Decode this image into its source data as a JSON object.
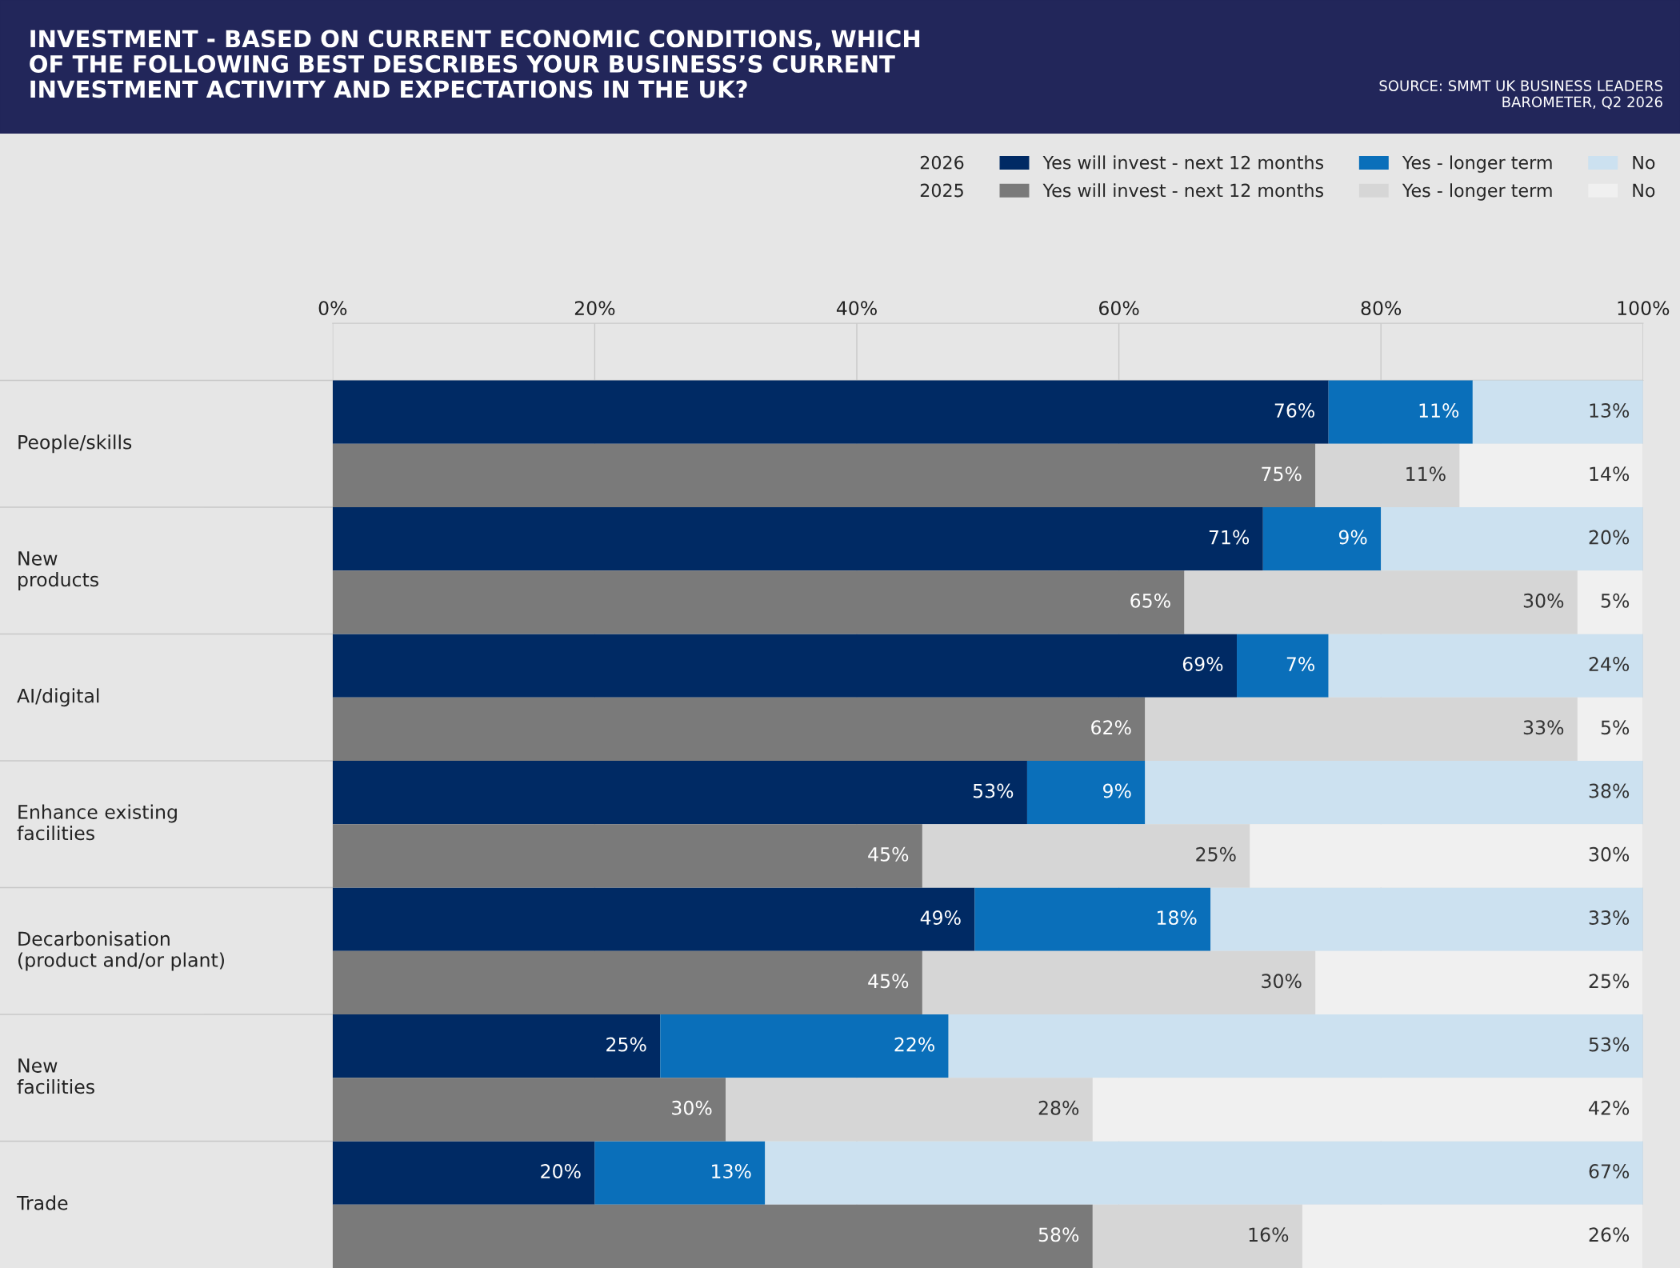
{
  "chart_data": {
    "type": "bar",
    "orientation": "horizontal",
    "stacked": true,
    "title": "INVESTMENT - BASED ON CURRENT ECONOMIC CONDITIONS, WHICH\nOF THE FOLLOWING BEST DESCRIBES YOUR BUSINESS’S CURRENT\nINVESTMENT ACTIVITY AND EXPECTATIONS IN THE UK?",
    "annotations": [
      "SOURCE: SMMT UK BUSINESS LEADERS\nBAROMETER, Q2 2026",
      "2026",
      "2025"
    ],
    "categories": [
      "People/skills",
      null,
      "New\nproducts",
      null,
      "AI/digital",
      null,
      "Enhance existing\nfacilities",
      null,
      "Decarbonisation\n(product and/or plant)",
      null,
      "New\nfacilities",
      null,
      "Trade",
      null
    ],
    "xlim": [
      0,
      100
    ],
    "xticks": [
      {
        "value": 0,
        "label": "0%"
      },
      {
        "value": 20,
        "label": "20%"
      },
      {
        "value": 40,
        "label": "40%"
      },
      {
        "value": 60,
        "label": "60%"
      },
      {
        "value": 80,
        "label": "80%"
      },
      {
        "value": 100,
        "label": "100%"
      }
    ],
    "grid": "x",
    "legend": "top right",
    "series": [
      {
        "name": "Yes will invest - next 12 months",
        "color": "#002a64",
        "values": [
          76,
          null,
          71,
          null,
          69,
          null,
          53,
          null,
          49,
          null,
          25,
          null,
          20,
          null
        ],
        "value_labels": [
          "76%",
          null,
          "71%",
          null,
          "69%",
          null,
          "53%",
          null,
          "49%",
          null,
          "25%",
          null,
          "20%",
          null
        ]
      },
      {
        "name": "Yes - longer term",
        "color": "#0a6fba",
        "values": [
          11,
          null,
          9,
          null,
          7,
          null,
          9,
          null,
          18,
          null,
          22,
          null,
          13,
          null
        ],
        "value_labels": [
          "11%",
          null,
          "9%",
          null,
          "7%",
          null,
          "9%",
          null,
          "18%",
          null,
          "22%",
          null,
          "13%",
          null
        ]
      },
      {
        "name": "No",
        "color": "#cce1f0",
        "values": [
          13,
          null,
          20,
          null,
          24,
          null,
          38,
          null,
          33,
          null,
          53,
          null,
          67,
          null
        ],
        "value_labels": [
          "13%",
          null,
          "20%",
          null,
          "24%",
          null,
          "38%",
          null,
          "33%",
          null,
          "53%",
          null,
          "67%",
          null
        ]
      },
      {
        "name": "Yes will invest - next 12 months",
        "color": "#7a7a7a",
        "values": [
          null,
          75,
          null,
          65,
          null,
          62,
          null,
          45,
          null,
          45,
          null,
          30,
          null,
          58
        ],
        "value_labels": [
          null,
          "75%",
          null,
          "65%",
          null,
          "62%",
          null,
          "45%",
          null,
          "45%",
          null,
          "30%",
          null,
          "58%"
        ]
      },
      {
        "name": "Yes - longer term",
        "color": "#d6d6d6",
        "values": [
          null,
          11,
          null,
          30,
          null,
          33,
          null,
          25,
          null,
          30,
          null,
          28,
          null,
          16
        ],
        "value_labels": [
          null,
          "11%",
          null,
          "30%",
          null,
          "33%",
          null,
          "25%",
          null,
          "30%",
          null,
          "28%",
          null,
          "16%"
        ]
      },
      {
        "name": "No",
        "color": "#f0f0f0",
        "values": [
          null,
          14,
          null,
          5,
          null,
          5,
          null,
          30,
          null,
          25,
          null,
          42,
          null,
          26
        ],
        "value_labels": [
          null,
          "14%",
          null,
          "5%",
          null,
          "5%",
          null,
          "30%",
          null,
          "25%",
          null,
          "42%",
          null,
          "26%"
        ]
      }
    ]
  }
}
